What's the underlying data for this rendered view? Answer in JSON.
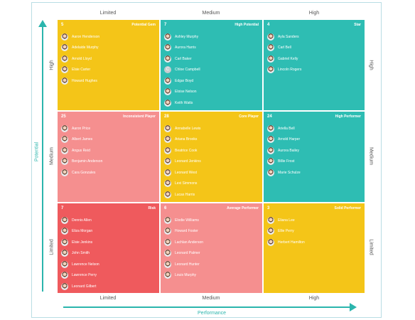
{
  "axes": {
    "x_levels": [
      "Limited",
      "Medium",
      "High"
    ],
    "y_levels": [
      "High",
      "Medium",
      "Limited"
    ],
    "x_title": "Performance",
    "y_title": "Potential"
  },
  "colors": {
    "yellow": "#f4c518",
    "teal": "#2ebdb3",
    "pink": "#f58f8f",
    "red": "#ef5a5d",
    "arrow": "#2bb5ad"
  },
  "cells": [
    {
      "count": "5",
      "label": "Potential Gem",
      "color": "yellow",
      "people": [
        {
          "name": "Aaron Henderson"
        },
        {
          "name": "Adelaide Murphy"
        },
        {
          "name": "Arnold Lloyd"
        },
        {
          "name": "Elsie Carter"
        },
        {
          "name": "Howard Hughes"
        }
      ]
    },
    {
      "count": "7",
      "label": "High Potential",
      "color": "teal",
      "people": [
        {
          "name": "Ashley Murphy"
        },
        {
          "name": "Aurora Harris"
        },
        {
          "name": "Carl Baker"
        },
        {
          "name": "Chloe Campbell",
          "initial": "C"
        },
        {
          "name": "Edgar Boyd"
        },
        {
          "name": "Eloise Nelson"
        },
        {
          "name": "Keith Watts"
        }
      ]
    },
    {
      "count": "4",
      "label": "Star",
      "color": "teal",
      "people": [
        {
          "name": "Ayla Sanders"
        },
        {
          "name": "Carl Bell"
        },
        {
          "name": "Gabriel Kelly"
        },
        {
          "name": "Lincoln Rogers"
        }
      ]
    },
    {
      "count": "25",
      "label": "Inconsistent Player",
      "color": "pink",
      "people": [
        {
          "name": "Aaron Price"
        },
        {
          "name": "Albert James"
        },
        {
          "name": "Angus Reid"
        },
        {
          "name": "Benjamin Anderson"
        },
        {
          "name": "Cara Gonzales"
        }
      ]
    },
    {
      "count": "28",
      "label": "Core Player",
      "color": "yellow",
      "people": [
        {
          "name": "Annabelle Lewis"
        },
        {
          "name": "Ariana Brooks"
        },
        {
          "name": "Beatrice Cook"
        },
        {
          "name": "Leonard Jenkins"
        },
        {
          "name": "Leonard West"
        },
        {
          "name": "Lexi Simmons"
        },
        {
          "name": "Lucas Harris"
        }
      ]
    },
    {
      "count": "24",
      "label": "High Performer",
      "color": "teal",
      "people": [
        {
          "name": "Ariella Bell"
        },
        {
          "name": "Arnold Harper"
        },
        {
          "name": "Aurora Bailey"
        },
        {
          "name": "Billie Frost"
        },
        {
          "name": "Marie Schulze"
        }
      ]
    },
    {
      "count": "7",
      "label": "Risk",
      "color": "red",
      "people": [
        {
          "name": "Dennis Allen"
        },
        {
          "name": "Eliza Morgan"
        },
        {
          "name": "Elsie Jenkins"
        },
        {
          "name": "John Smith"
        },
        {
          "name": "Lawrence Nelson"
        },
        {
          "name": "Lawrence Perry"
        },
        {
          "name": "Leonard Gilbert"
        }
      ]
    },
    {
      "count": "6",
      "label": "Average Performer",
      "color": "pink",
      "people": [
        {
          "name": "Elodie Williams"
        },
        {
          "name": "Howard Foster"
        },
        {
          "name": "Lachlan Anderson"
        },
        {
          "name": "Leonard Palmer"
        },
        {
          "name": "Leonard Hunter"
        },
        {
          "name": "Louis Murphy"
        }
      ]
    },
    {
      "count": "3",
      "label": "Solid Performer",
      "color": "yellow",
      "people": [
        {
          "name": "Eliana Lee"
        },
        {
          "name": "Ellie Perry"
        },
        {
          "name": "Herbert Hamilton"
        }
      ]
    }
  ]
}
